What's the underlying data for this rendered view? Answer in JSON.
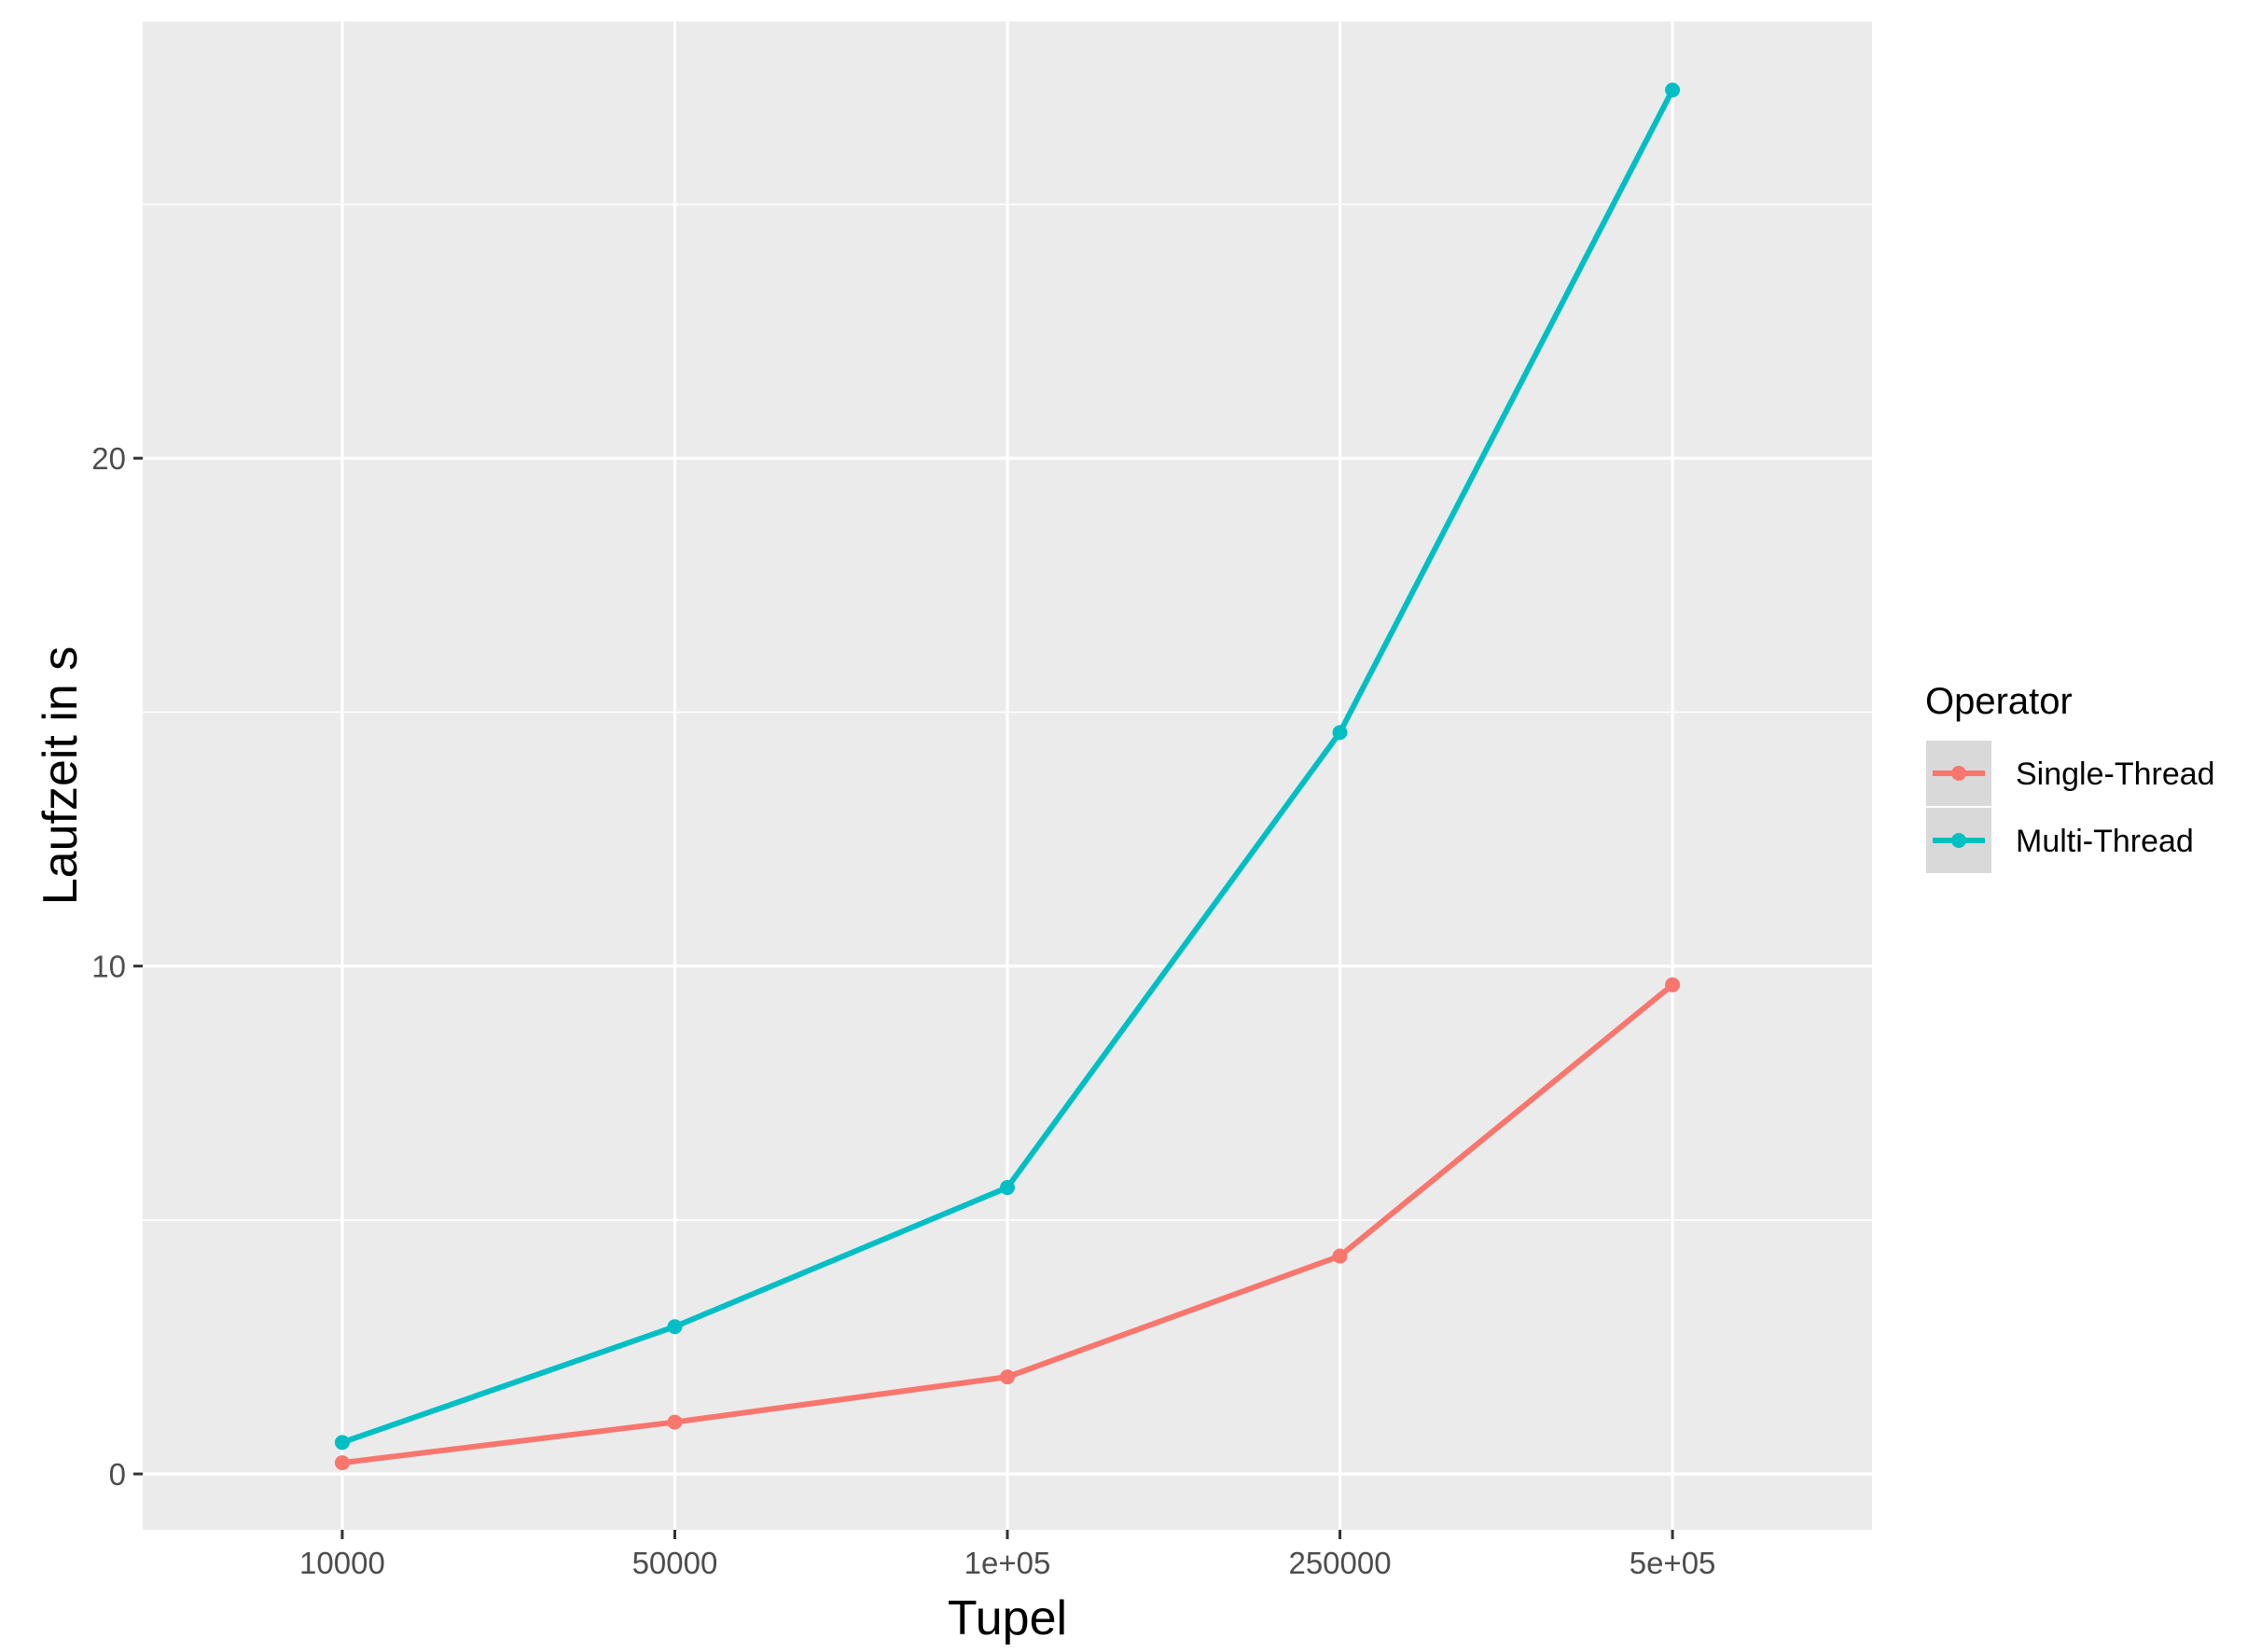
{
  "chart_data": {
    "type": "line",
    "title": "",
    "xlabel": "Tupel",
    "ylabel": "Laufzeit in s",
    "categories": [
      "10000",
      "50000",
      "1e+05",
      "250000",
      "5e+05"
    ],
    "y_ticks": [
      "0",
      "10",
      "20"
    ],
    "ylim": [
      -1.1,
      28.6
    ],
    "grid": true,
    "legend": {
      "title": "Operator",
      "position": "right"
    },
    "series": [
      {
        "name": "Single-Thread",
        "color": "#F8766D",
        "values": [
          0.22,
          1.02,
          1.91,
          4.29,
          9.63
        ]
      },
      {
        "name": "Multi-Thread",
        "color": "#00BFC4",
        "values": [
          0.62,
          2.9,
          5.64,
          14.6,
          27.25
        ]
      }
    ]
  }
}
